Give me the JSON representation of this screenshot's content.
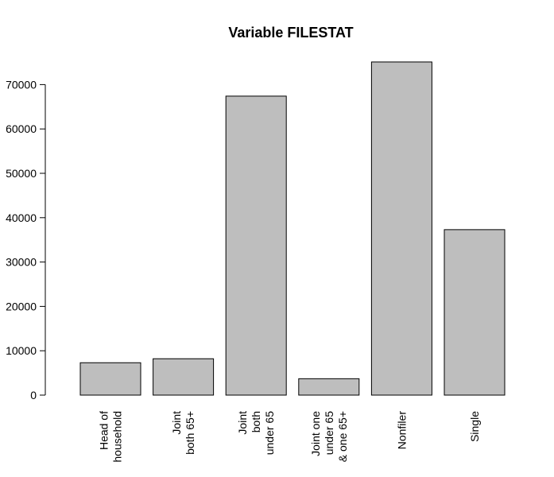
{
  "chart_data": {
    "type": "bar",
    "title": "Variable FILESTAT",
    "xlabel": "",
    "ylabel": "",
    "categories": [
      [
        "Head of",
        "household"
      ],
      [
        "Joint",
        "both 65+"
      ],
      [
        "Joint",
        "both",
        "under 65"
      ],
      [
        "Joint one",
        "under 65",
        "& one 65+"
      ],
      [
        "Nonfiler"
      ],
      [
        "Single"
      ]
    ],
    "values": [
      7300,
      8200,
      67400,
      3700,
      75100,
      37300
    ],
    "ylim": [
      0,
      75100
    ],
    "yticks": [
      0,
      10000,
      20000,
      30000,
      40000,
      50000,
      60000,
      70000
    ],
    "bar_color": "#bebebe",
    "grid": false,
    "legend": "none"
  }
}
